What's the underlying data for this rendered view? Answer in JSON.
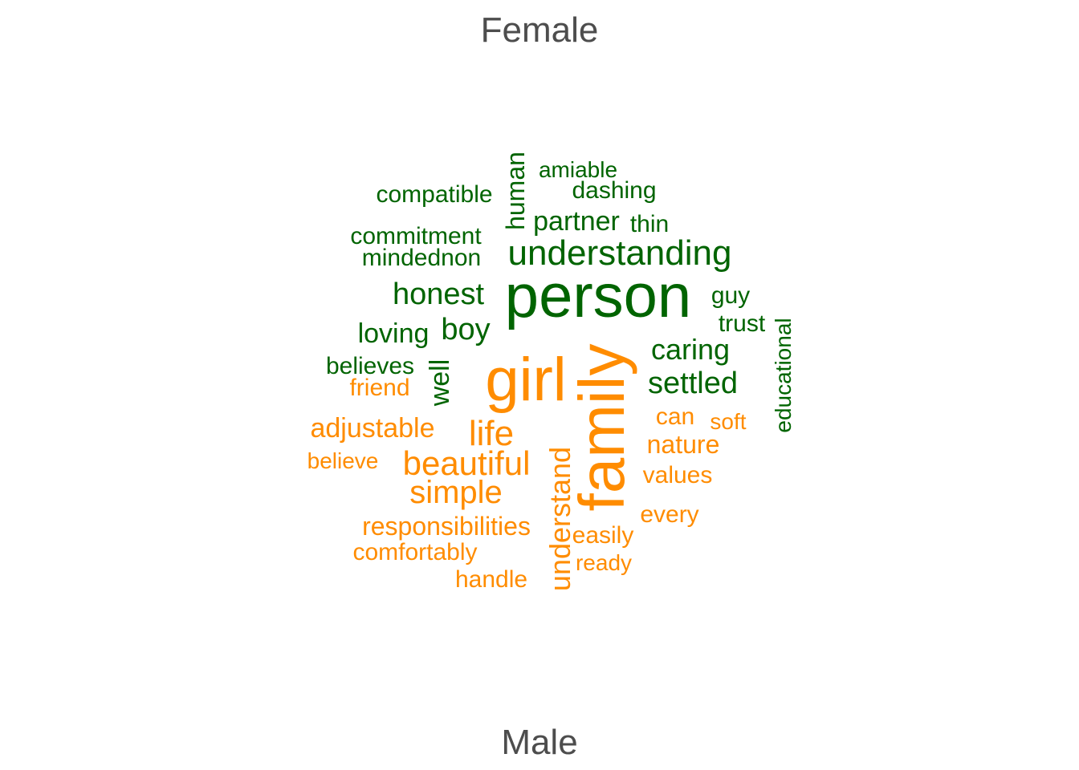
{
  "groups": {
    "top_label": "Female",
    "bottom_label": "Male"
  },
  "colors": {
    "female": "#006400",
    "male": "#ff8c00"
  },
  "words": [
    {
      "text": "person",
      "group": "female"
    },
    {
      "text": "understanding",
      "group": "female"
    },
    {
      "text": "honest",
      "group": "female"
    },
    {
      "text": "boy",
      "group": "female"
    },
    {
      "text": "loving",
      "group": "female"
    },
    {
      "text": "caring",
      "group": "female"
    },
    {
      "text": "settled",
      "group": "female"
    },
    {
      "text": "partner",
      "group": "female"
    },
    {
      "text": "human",
      "group": "female"
    },
    {
      "text": "amiable",
      "group": "female"
    },
    {
      "text": "dashing",
      "group": "female"
    },
    {
      "text": "compatible",
      "group": "female"
    },
    {
      "text": "thin",
      "group": "female"
    },
    {
      "text": "commitment",
      "group": "female"
    },
    {
      "text": "mindednon",
      "group": "female"
    },
    {
      "text": "guy",
      "group": "female"
    },
    {
      "text": "trust",
      "group": "female"
    },
    {
      "text": "educational",
      "group": "female"
    },
    {
      "text": "believes",
      "group": "female"
    },
    {
      "text": "well",
      "group": "female"
    },
    {
      "text": "girl",
      "group": "male"
    },
    {
      "text": "family",
      "group": "male"
    },
    {
      "text": "life",
      "group": "male"
    },
    {
      "text": "beautiful",
      "group": "male"
    },
    {
      "text": "simple",
      "group": "male"
    },
    {
      "text": "friend",
      "group": "male"
    },
    {
      "text": "adjustable",
      "group": "male"
    },
    {
      "text": "believe",
      "group": "male"
    },
    {
      "text": "can",
      "group": "male"
    },
    {
      "text": "soft",
      "group": "male"
    },
    {
      "text": "nature",
      "group": "male"
    },
    {
      "text": "values",
      "group": "male"
    },
    {
      "text": "every",
      "group": "male"
    },
    {
      "text": "understand",
      "group": "male"
    },
    {
      "text": "easily",
      "group": "male"
    },
    {
      "text": "ready",
      "group": "male"
    },
    {
      "text": "responsibilities",
      "group": "male"
    },
    {
      "text": "comfortably",
      "group": "male"
    },
    {
      "text": "handle",
      "group": "male"
    }
  ]
}
